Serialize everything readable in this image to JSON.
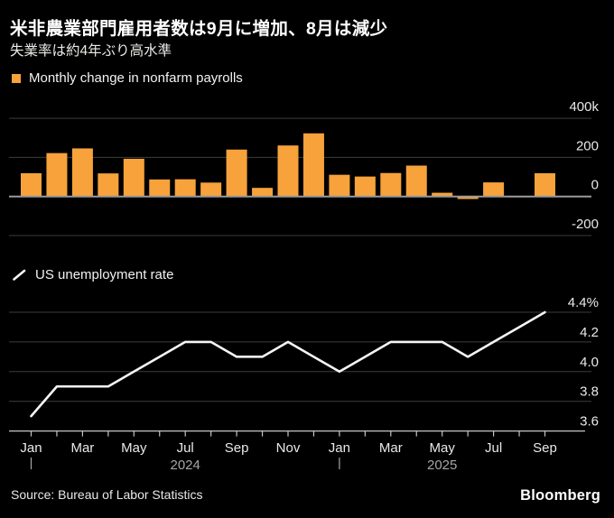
{
  "header": {
    "title": "米非農業部門雇用者数は9月に増加、8月は減少",
    "subtitle": "失業率は約4年ぶり高水準"
  },
  "colors": {
    "background": "#000000",
    "accent_orange": "#f7a23b",
    "line_white": "#f5f5f5",
    "gridline": "#3d3d3d",
    "zero_line": "#9a9a9a",
    "axis": "#c4c4c4",
    "tick_label": "#e9e9e9",
    "year_label": "#a6a6a6"
  },
  "chart_data": [
    {
      "type": "bar",
      "title": "Monthly change in nonfarm payrolls",
      "legend": "Monthly change in nonfarm payrolls",
      "legend_position": "top-left",
      "unit": "thousands of jobs",
      "grid": true,
      "color": "#f7a23b",
      "categories": [
        "Jan 2024",
        "Feb 2024",
        "Mar 2024",
        "Apr 2024",
        "May 2024",
        "Jun 2024",
        "Jul 2024",
        "Aug 2024",
        "Sep 2024",
        "Oct 2024",
        "Nov 2024",
        "Dec 2024",
        "Jan 2025",
        "Feb 2025",
        "Mar 2025",
        "Apr 2025",
        "May 2025",
        "Jun 2025",
        "Jul 2025",
        "Aug 2025",
        "Sep 2025"
      ],
      "values": [
        119,
        222,
        246,
        118,
        193,
        87,
        88,
        71,
        240,
        44,
        261,
        323,
        111,
        102,
        120,
        158,
        19,
        -13,
        72,
        -4,
        119
      ],
      "ylim": [
        -280,
        420
      ],
      "yticks": [
        {
          "value": 400,
          "label": "400k"
        },
        {
          "value": 200,
          "label": "200"
        },
        {
          "value": 0,
          "label": "0"
        },
        {
          "value": -200,
          "label": "-200"
        }
      ]
    },
    {
      "type": "line",
      "title": "US unemployment rate",
      "legend": "US unemployment rate",
      "legend_position": "top-left",
      "unit": "%",
      "grid": true,
      "color": "#f5f5f5",
      "categories": [
        "Jan 2024",
        "Feb 2024",
        "Mar 2024",
        "Apr 2024",
        "May 2024",
        "Jun 2024",
        "Jul 2024",
        "Aug 2024",
        "Sep 2024",
        "Oct 2024",
        "Nov 2024",
        "Dec 2024",
        "Jan 2025",
        "Feb 2025",
        "Mar 2025",
        "Apr 2025",
        "May 2025",
        "Jun 2025",
        "Jul 2025",
        "Aug 2025",
        "Sep 2025"
      ],
      "values": [
        3.7,
        3.9,
        3.9,
        3.9,
        4.0,
        4.1,
        4.2,
        4.2,
        4.1,
        4.1,
        4.2,
        4.1,
        4.0,
        4.1,
        4.2,
        4.2,
        4.2,
        4.1,
        4.2,
        4.3,
        4.4
      ],
      "ylim": [
        3.55,
        4.45
      ],
      "yticks": [
        {
          "value": 4.4,
          "label": "4.4%"
        },
        {
          "value": 4.2,
          "label": "4.2"
        },
        {
          "value": 4.0,
          "label": "4.0"
        },
        {
          "value": 3.8,
          "label": "3.8"
        },
        {
          "value": 3.6,
          "label": "3.6"
        }
      ]
    }
  ],
  "xaxis": {
    "month_labels": [
      {
        "index": 0,
        "text": "Jan"
      },
      {
        "index": 2,
        "text": "Mar"
      },
      {
        "index": 4,
        "text": "May"
      },
      {
        "index": 6,
        "text": "Jul"
      },
      {
        "index": 8,
        "text": "Sep"
      },
      {
        "index": 10,
        "text": "Nov"
      },
      {
        "index": 12,
        "text": "Jan"
      },
      {
        "index": 14,
        "text": "Mar"
      },
      {
        "index": 16,
        "text": "May"
      },
      {
        "index": 18,
        "text": "Jul"
      },
      {
        "index": 20,
        "text": "Sep"
      }
    ],
    "year_dividers": [
      {
        "index": 0
      },
      {
        "index": 12
      }
    ],
    "year_labels": [
      {
        "index": 6,
        "text": "2024"
      },
      {
        "index": 16,
        "text": "2025"
      }
    ]
  },
  "footer": {
    "source": "Source: Bureau of Labor Statistics",
    "brand": "Bloomberg"
  }
}
